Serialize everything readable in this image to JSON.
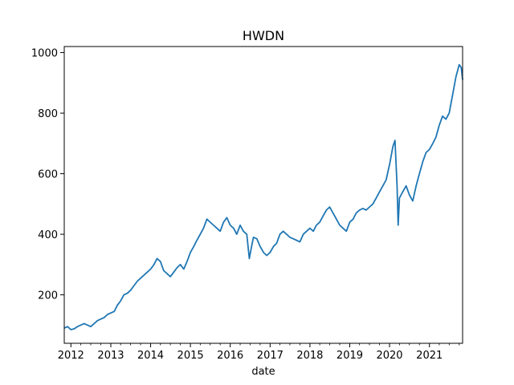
{
  "chart_data": {
    "type": "line",
    "title": "HWDN",
    "xlabel": "date",
    "ylabel": "",
    "xlim": [
      "2011-11-01",
      "2021-11-01"
    ],
    "ylim": [
      40,
      1020
    ],
    "x_ticks": [
      "2012",
      "2013",
      "2014",
      "2015",
      "2016",
      "2017",
      "2018",
      "2019",
      "2020",
      "2021"
    ],
    "y_ticks": [
      200,
      400,
      600,
      800,
      1000
    ],
    "grid": false,
    "line_color": "#1f77b4",
    "series": [
      {
        "x": [
          "2011-11-01",
          "2011-12-01",
          "2012-01-01",
          "2012-02-01",
          "2012-03-01",
          "2012-04-01",
          "2012-05-01",
          "2012-06-01",
          "2012-07-01",
          "2012-08-01",
          "2012-09-01",
          "2012-10-01",
          "2012-11-01",
          "2012-12-01",
          "2013-01-01",
          "2013-02-01",
          "2013-03-01",
          "2013-04-01",
          "2013-05-01",
          "2013-06-01",
          "2013-07-01",
          "2013-08-01",
          "2013-09-01",
          "2013-10-01",
          "2013-11-01",
          "2013-12-01",
          "2014-01-01",
          "2014-02-01",
          "2014-03-01",
          "2014-04-01",
          "2014-05-01",
          "2014-06-01",
          "2014-07-01",
          "2014-08-01",
          "2014-09-01",
          "2014-10-01",
          "2014-11-01",
          "2014-12-01",
          "2015-01-01",
          "2015-02-01",
          "2015-03-01",
          "2015-04-01",
          "2015-05-01",
          "2015-06-01",
          "2015-07-01",
          "2015-08-01",
          "2015-09-01",
          "2015-10-01",
          "2015-11-01",
          "2015-12-01",
          "2016-01-01",
          "2016-02-01",
          "2016-03-01",
          "2016-04-01",
          "2016-05-01",
          "2016-06-01",
          "2016-06-24",
          "2016-07-15",
          "2016-08-01",
          "2016-09-01",
          "2016-10-01",
          "2016-11-01",
          "2016-12-01",
          "2017-01-01",
          "2017-02-01",
          "2017-03-01",
          "2017-04-01",
          "2017-05-01",
          "2017-06-01",
          "2017-07-01",
          "2017-08-01",
          "2017-09-01",
          "2017-10-01",
          "2017-11-01",
          "2017-12-01",
          "2018-01-01",
          "2018-02-01",
          "2018-03-01",
          "2018-04-01",
          "2018-05-01",
          "2018-06-01",
          "2018-07-01",
          "2018-08-01",
          "2018-09-01",
          "2018-10-01",
          "2018-11-01",
          "2018-12-01",
          "2019-01-01",
          "2019-02-01",
          "2019-03-01",
          "2019-04-01",
          "2019-05-01",
          "2019-06-01",
          "2019-07-01",
          "2019-08-01",
          "2019-09-01",
          "2019-10-01",
          "2019-11-01",
          "2019-12-01",
          "2020-01-01",
          "2020-02-01",
          "2020-02-20",
          "2020-03-10",
          "2020-03-20",
          "2020-04-01",
          "2020-05-01",
          "2020-06-01",
          "2020-07-01",
          "2020-08-01",
          "2020-09-01",
          "2020-10-01",
          "2020-11-01",
          "2020-12-01",
          "2021-01-01",
          "2021-02-01",
          "2021-03-01",
          "2021-04-01",
          "2021-05-01",
          "2021-06-01",
          "2021-07-01",
          "2021-08-01",
          "2021-09-01",
          "2021-10-01",
          "2021-10-20",
          "2021-11-01"
        ],
        "y": [
          90,
          95,
          85,
          88,
          95,
          100,
          105,
          100,
          95,
          105,
          115,
          120,
          125,
          135,
          140,
          145,
          165,
          180,
          200,
          205,
          215,
          230,
          245,
          255,
          265,
          275,
          285,
          300,
          320,
          310,
          280,
          270,
          260,
          275,
          290,
          300,
          285,
          310,
          340,
          360,
          380,
          400,
          420,
          450,
          440,
          430,
          420,
          410,
          440,
          455,
          430,
          420,
          400,
          430,
          410,
          400,
          320,
          360,
          390,
          385,
          360,
          340,
          330,
          340,
          360,
          370,
          400,
          410,
          400,
          390,
          385,
          380,
          375,
          400,
          410,
          420,
          410,
          430,
          440,
          460,
          480,
          490,
          470,
          450,
          430,
          420,
          410,
          440,
          450,
          470,
          480,
          485,
          480,
          490,
          500,
          520,
          540,
          560,
          580,
          630,
          690,
          710,
          560,
          430,
          520,
          540,
          560,
          530,
          510,
          560,
          600,
          640,
          670,
          680,
          700,
          720,
          760,
          790,
          780,
          800,
          860,
          920,
          960,
          950,
          910
        ]
      }
    ]
  }
}
